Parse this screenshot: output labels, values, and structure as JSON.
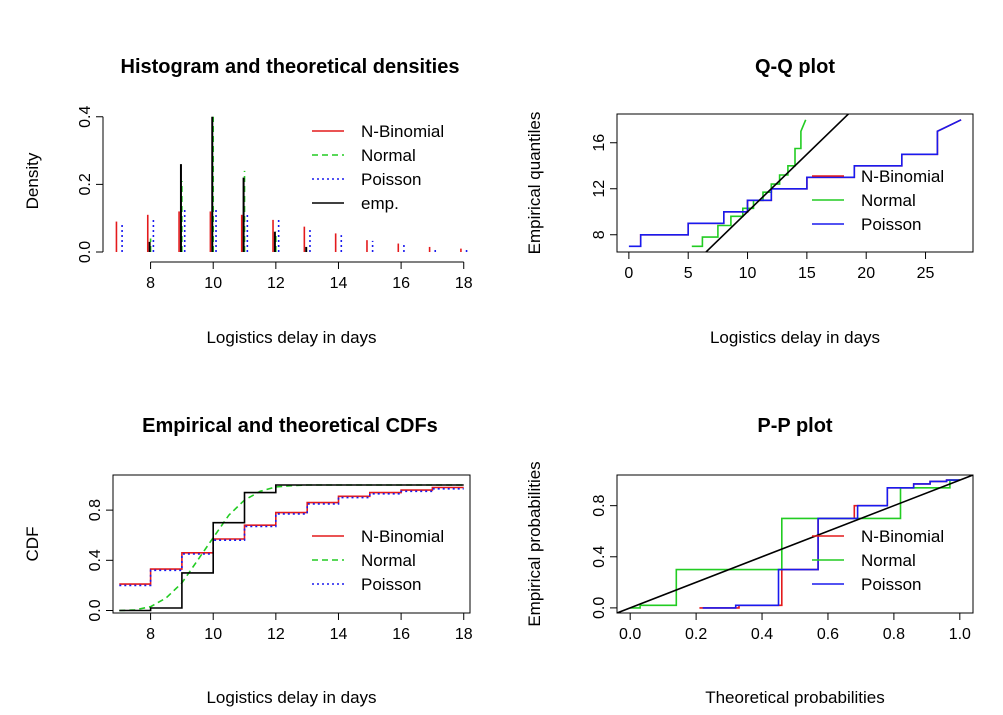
{
  "chart_data": [
    {
      "type": "bar",
      "title": "Histogram and theoretical densities",
      "xlabel": "Logistics delay in days",
      "ylabel": "Density",
      "xlim": [
        6.8,
        18.2
      ],
      "ylim": [
        0,
        0.42
      ],
      "xticks": [
        8,
        10,
        12,
        14,
        16,
        18
      ],
      "yticks": [
        0.0,
        0.2,
        0.4
      ],
      "ytick_labels": [
        "0.0",
        "0.2",
        "0.4"
      ],
      "x": [
        7,
        8,
        9,
        10,
        11,
        12,
        13,
        14,
        15,
        16,
        17,
        18
      ],
      "legend": {
        "position": "top-right",
        "entries": [
          "N-Binomial",
          "Normal",
          "Poisson",
          "emp."
        ]
      },
      "series": [
        {
          "name": "N-Binomial",
          "color": "#e41a1c",
          "dash": "solid",
          "values": [
            0.09,
            0.11,
            0.12,
            0.12,
            0.11,
            0.095,
            0.075,
            0.055,
            0.035,
            0.025,
            0.015,
            0.01
          ]
        },
        {
          "name": "Normal",
          "color": "#22cc22",
          "dash": "dashed",
          "values": [
            0.0,
            0.04,
            0.21,
            0.4,
            0.24,
            0.06,
            0.0,
            0.0,
            0.0,
            0.0,
            0.0,
            0.0
          ]
        },
        {
          "name": "Poisson",
          "color": "#1a1aee",
          "dash": "dotted",
          "values": [
            0.08,
            0.1,
            0.125,
            0.125,
            0.115,
            0.095,
            0.07,
            0.05,
            0.033,
            0.022,
            0.013,
            0.008
          ]
        },
        {
          "name": "emp.",
          "color": "#000000",
          "dash": "solid",
          "values": [
            0.0,
            0.03,
            0.26,
            0.4,
            0.22,
            0.06,
            0.015,
            0.0,
            0.0,
            0.0,
            0.0,
            0.0
          ]
        }
      ]
    },
    {
      "type": "line",
      "title": "Q-Q plot",
      "xlabel": "Logistics delay in days",
      "ylabel": "Empirical quantiles",
      "xlim": [
        -1,
        29
      ],
      "ylim": [
        6.5,
        18.5
      ],
      "xticks": [
        0,
        5,
        10,
        15,
        20,
        25
      ],
      "yticks": [
        8,
        12,
        16
      ],
      "legend": {
        "position": "center-right",
        "entries": [
          "N-Binomial",
          "Normal",
          "Poisson"
        ]
      },
      "reference_line": {
        "slope": 1,
        "intercept": 0,
        "color": "#000000"
      },
      "series": [
        {
          "name": "N-Binomial",
          "color": "#e41a1c",
          "x": [
            1,
            1,
            5,
            5,
            8,
            8,
            10,
            10,
            12,
            12,
            15,
            15,
            19,
            19,
            23,
            23,
            26,
            26,
            28
          ],
          "y": [
            7,
            8,
            8,
            9,
            9,
            10,
            10,
            11,
            11,
            12,
            12,
            13,
            13,
            14,
            14,
            15,
            15,
            17,
            18
          ]
        },
        {
          "name": "Normal",
          "color": "#22cc22",
          "x": [
            5.3,
            6.2,
            6.2,
            7.5,
            7.5,
            8.6,
            8.6,
            9.6,
            9.6,
            10.5,
            10.5,
            11.3,
            11.3,
            12.0,
            12.0,
            12.7,
            12.7,
            13.4,
            13.4,
            14.0,
            14.0,
            14.5,
            14.5,
            14.9
          ],
          "y": [
            7,
            7,
            7.8,
            7.8,
            8.8,
            8.8,
            9.6,
            9.6,
            10.3,
            10.3,
            11.0,
            11.0,
            11.7,
            11.7,
            12.4,
            12.4,
            13.2,
            13.2,
            14.0,
            14.0,
            15.5,
            15.5,
            17.0,
            18.0
          ]
        },
        {
          "name": "Poisson",
          "color": "#1a1aee",
          "x": [
            0,
            1,
            1,
            5,
            5,
            8,
            8,
            10,
            10,
            12,
            12,
            15,
            15,
            19,
            19,
            23,
            23,
            26,
            26,
            28
          ],
          "y": [
            7,
            7,
            8,
            8,
            9,
            9,
            10,
            10,
            11,
            11,
            12,
            12,
            13,
            13,
            14,
            14,
            15,
            15,
            17,
            18
          ]
        }
      ]
    },
    {
      "type": "line",
      "title": "Empirical and theoretical CDFs",
      "xlabel": "Logistics delay in days",
      "ylabel": "CDF",
      "xlim": [
        6.8,
        18.2
      ],
      "ylim": [
        -0.02,
        1.08
      ],
      "xticks": [
        8,
        10,
        12,
        14,
        16,
        18
      ],
      "yticks": [
        0.0,
        0.4,
        0.8
      ],
      "ytick_labels": [
        "0.0",
        "0.4",
        "0.8"
      ],
      "legend": {
        "position": "bottom-right",
        "entries": [
          "N-Binomial",
          "Normal",
          "Poisson"
        ]
      },
      "series": [
        {
          "name": "N-Binomial",
          "color": "#e41a1c",
          "dash": "solid",
          "x": [
            7,
            8,
            8,
            9,
            9,
            10,
            10,
            11,
            11,
            12,
            12,
            13,
            13,
            14,
            14,
            15,
            15,
            16,
            16,
            17,
            17,
            18
          ],
          "y": [
            0.21,
            0.21,
            0.33,
            0.33,
            0.46,
            0.46,
            0.57,
            0.57,
            0.68,
            0.68,
            0.78,
            0.78,
            0.86,
            0.86,
            0.91,
            0.91,
            0.94,
            0.94,
            0.96,
            0.96,
            0.98,
            0.98
          ]
        },
        {
          "name": "Normal",
          "color": "#22cc22",
          "dash": "dashed",
          "x": [
            7,
            7.5,
            8,
            8.5,
            9,
            9.5,
            10,
            10.5,
            11,
            11.5,
            12,
            12.5,
            13,
            18
          ],
          "y": [
            0.0,
            0.005,
            0.03,
            0.1,
            0.22,
            0.4,
            0.58,
            0.76,
            0.88,
            0.95,
            0.985,
            0.995,
            1.0,
            1.0
          ]
        },
        {
          "name": "Poisson",
          "color": "#1a1aee",
          "dash": "dotted",
          "x": [
            7,
            8,
            8,
            9,
            9,
            10,
            10,
            11,
            11,
            12,
            12,
            13,
            13,
            14,
            14,
            15,
            15,
            16,
            16,
            17,
            17,
            18
          ],
          "y": [
            0.2,
            0.2,
            0.32,
            0.32,
            0.45,
            0.45,
            0.56,
            0.56,
            0.67,
            0.67,
            0.77,
            0.77,
            0.85,
            0.85,
            0.9,
            0.9,
            0.93,
            0.93,
            0.95,
            0.95,
            0.97,
            0.97
          ]
        },
        {
          "name": "Empirical",
          "color": "#000000",
          "dash": "solid",
          "x": [
            7,
            8,
            8,
            9,
            9,
            10,
            10,
            11,
            11,
            12,
            12,
            18
          ],
          "y": [
            0.0,
            0.0,
            0.02,
            0.02,
            0.3,
            0.3,
            0.7,
            0.7,
            0.94,
            0.94,
            1.0,
            1.0
          ]
        }
      ]
    },
    {
      "type": "line",
      "title": "P-P plot",
      "xlabel": "Theoretical probabilities",
      "ylabel": "Empirical probabilities",
      "xlim": [
        -0.04,
        1.04
      ],
      "ylim": [
        -0.04,
        1.04
      ],
      "xticks": [
        0.0,
        0.2,
        0.4,
        0.6,
        0.8,
        1.0
      ],
      "xtick_labels": [
        "0.0",
        "0.2",
        "0.4",
        "0.6",
        "0.8",
        "1.0"
      ],
      "yticks": [
        0.0,
        0.4,
        0.8
      ],
      "ytick_labels": [
        "0.0",
        "0.4",
        "0.8"
      ],
      "legend": {
        "position": "bottom-right",
        "entries": [
          "N-Binomial",
          "Normal",
          "Poisson"
        ]
      },
      "reference_line": {
        "slope": 1,
        "intercept": 0,
        "color": "#000000"
      },
      "series": [
        {
          "name": "N-Binomial",
          "color": "#e41a1c",
          "x": [
            0.21,
            0.33,
            0.33,
            0.46,
            0.46,
            0.57,
            0.57,
            0.68,
            0.68,
            0.78,
            0.78,
            0.86,
            0.86,
            0.91,
            0.91,
            0.96,
            0.96,
            1.0
          ],
          "y": [
            0.0,
            0.0,
            0.02,
            0.02,
            0.3,
            0.3,
            0.7,
            0.7,
            0.8,
            0.8,
            0.94,
            0.94,
            0.97,
            0.97,
            0.99,
            0.99,
            1.0,
            1.0
          ]
        },
        {
          "name": "Normal",
          "color": "#22cc22",
          "x": [
            0.0,
            0.03,
            0.03,
            0.14,
            0.14,
            0.46,
            0.46,
            0.82,
            0.82,
            0.97,
            0.97,
            1.0
          ],
          "y": [
            0.0,
            0.0,
            0.02,
            0.02,
            0.3,
            0.3,
            0.7,
            0.7,
            0.94,
            0.94,
            1.0,
            1.0
          ]
        },
        {
          "name": "Poisson",
          "color": "#1a1aee",
          "x": [
            0.22,
            0.32,
            0.32,
            0.45,
            0.45,
            0.57,
            0.57,
            0.69,
            0.69,
            0.78,
            0.78,
            0.86,
            0.86,
            0.91,
            0.91,
            0.96,
            0.96,
            1.0
          ],
          "y": [
            0.0,
            0.0,
            0.02,
            0.02,
            0.3,
            0.3,
            0.7,
            0.7,
            0.8,
            0.8,
            0.94,
            0.94,
            0.97,
            0.97,
            0.99,
            0.99,
            1.0,
            1.0
          ]
        }
      ]
    }
  ]
}
